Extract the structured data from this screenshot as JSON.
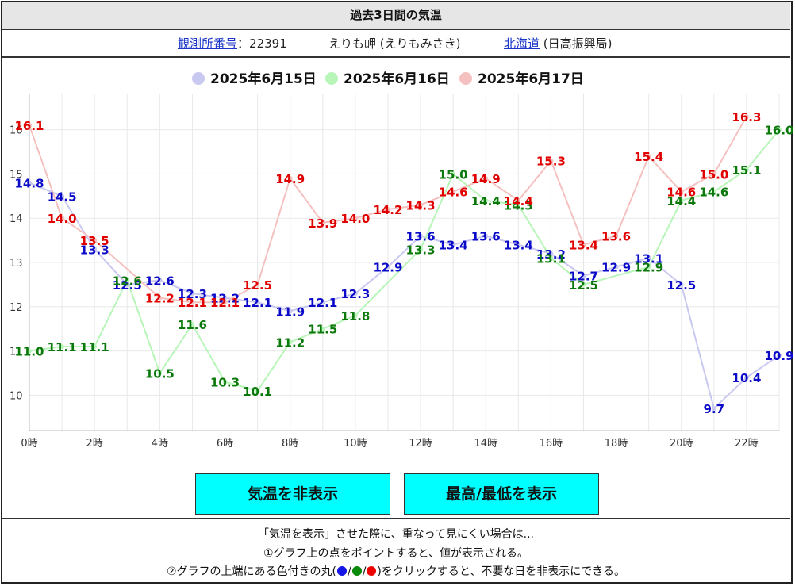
{
  "title": "過去3日間の気温",
  "info": {
    "station_label": "観測所番号",
    "station_sep": "：",
    "station_number": "22391",
    "station_name": "えりも岬 (えりもみさき)",
    "region_link": "北海道",
    "region_sub": "(日高振興局)"
  },
  "buttons": {
    "toggle_temp": "気温を非表示",
    "show_maxmin": "最高/最低を表示"
  },
  "notes": {
    "line1": "「気温を表示」させた際に、重なって見にくい場合は...",
    "line2": "①グラフ上の点をポイントすると、値が表示される。",
    "line3_pre": "②グラフの上端にある色付きの丸(",
    "line3_sep": "/",
    "line3_post": ")をクリックすると、不要な日を非表示にできる。"
  },
  "colors": {
    "day1_line": "#c8c8f0",
    "day1_label": "#0a0ac8",
    "day2_line": "#b8f5b8",
    "day2_label": "#0a780a",
    "day3_line": "#f5c0c0",
    "day3_label": "#e00000",
    "button_bg": "#00ffff"
  },
  "chart_data": {
    "type": "line",
    "x": [
      "0時",
      "1",
      "2時",
      "3",
      "4時",
      "5",
      "6時",
      "7",
      "8時",
      "9",
      "10時",
      "11",
      "12時",
      "13",
      "14時",
      "15",
      "16時",
      "17",
      "18時",
      "19",
      "20時",
      "21",
      "22時",
      "23"
    ],
    "x_tick_labels": [
      "0時",
      "2時",
      "4時",
      "6時",
      "8時",
      "10時",
      "12時",
      "14時",
      "16時",
      "18時",
      "20時",
      "22時"
    ],
    "y_tick_labels": [
      "10",
      "11",
      "12",
      "13",
      "14",
      "15",
      "16"
    ],
    "ylim": [
      9.2,
      16.8
    ],
    "grid": true,
    "legend_position": "top-center",
    "series": [
      {
        "name": "2025年6月15日",
        "values": [
          14.8,
          14.5,
          13.3,
          12.5,
          12.6,
          12.3,
          12.2,
          12.1,
          11.9,
          12.1,
          12.3,
          12.9,
          13.6,
          13.4,
          13.6,
          13.4,
          13.2,
          12.7,
          12.9,
          13.1,
          12.5,
          9.7,
          10.4,
          10.9
        ],
        "labels": [
          "14.8",
          "14.5",
          "13.3",
          "12.5",
          "12.6",
          "12.3",
          "12.2",
          "12.1",
          "11.9",
          "12.1",
          "12.3",
          "12.9",
          "13.6",
          "13.4",
          "13.6",
          "13.4",
          "13.2",
          "12.7",
          "12.9",
          "13.1",
          "12.5",
          "9.7",
          "10.4",
          "10.9"
        ]
      },
      {
        "name": "2025年6月16日",
        "values": [
          11.0,
          11.1,
          11.1,
          12.6,
          10.5,
          11.6,
          10.3,
          10.1,
          11.2,
          11.5,
          11.8,
          null,
          13.3,
          15.0,
          14.4,
          14.3,
          13.1,
          12.5,
          null,
          12.9,
          14.4,
          14.6,
          15.1,
          16.0
        ],
        "labels": [
          "11.0",
          "11.1",
          "11.1",
          "12.6",
          "10.5",
          "11.6",
          "10.3",
          "10.1",
          "11.2",
          "11.5",
          "11.8",
          "",
          "13.3",
          "15.0",
          "14.4",
          "14.3",
          "13.1",
          "12.5",
          "",
          "12.9",
          "14.4",
          "14.6",
          "15.1",
          "16.0"
        ]
      },
      {
        "name": "2025年6月17日",
        "values": [
          16.1,
          14.0,
          13.5,
          null,
          12.2,
          12.1,
          12.1,
          12.5,
          14.9,
          13.9,
          14.0,
          14.2,
          14.3,
          14.6,
          14.9,
          14.4,
          15.3,
          13.4,
          13.6,
          15.4,
          14.6,
          15.0,
          16.3,
          null
        ],
        "labels": [
          "16.1",
          "14.0",
          "13.5",
          "",
          "12.2",
          "12.1",
          "12.1",
          "12.5",
          "14.9",
          "13.9",
          "14.0",
          "14.2",
          "14.3",
          "14.6",
          "14.9",
          "14.4",
          "15.3",
          "13.4",
          "13.6",
          "15.4",
          "14.6",
          "15.0",
          "16.3",
          ""
        ]
      }
    ]
  }
}
